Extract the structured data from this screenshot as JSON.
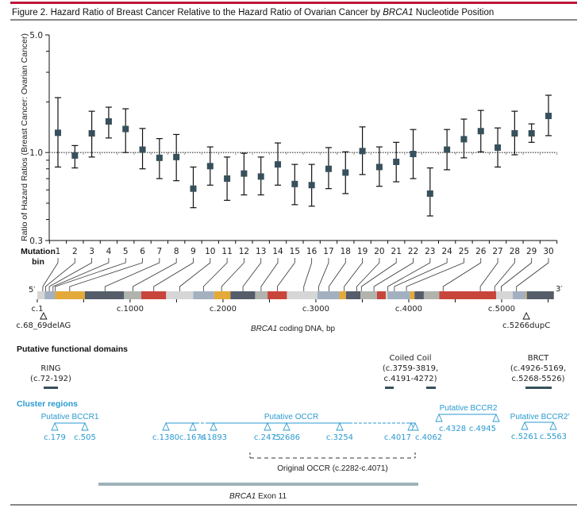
{
  "header": {
    "title_prefix": "Figure 2. Hazard Ratio of Breast Cancer Relative to the Hazard Ratio of Ovarian Cancer by ",
    "title_gene": "BRCA1",
    "title_suffix": " Nucleotide Position",
    "accent_color": "#c0163a"
  },
  "chart_data": {
    "type": "scatter",
    "subtype": "forest-plot-with-error-bars",
    "title": "Hazard Ratio of Breast Cancer Relative to the Hazard Ratio of Ovarian Cancer by BRCA1 Nucleotide Position",
    "ylabel": "Ratio of Hazard Ratios (Breast Cancer: Ovarian Cancer)",
    "xlabel": "Mutation bin",
    "yscale": "log",
    "ylim": [
      0.3,
      5.0
    ],
    "yticks": [
      0.3,
      1.0,
      5.0
    ],
    "ytick_labels": [
      "0.3",
      "1.0",
      "5.0"
    ],
    "reference_line": 1.0,
    "marker_color": "#37505c",
    "categories": [
      "1",
      "2",
      "3",
      "4",
      "5",
      "6",
      "7",
      "8",
      "9",
      "10",
      "11",
      "12",
      "13",
      "14",
      "15",
      "16",
      "17",
      "18",
      "19",
      "20",
      "21",
      "22",
      "23",
      "24",
      "25",
      "26",
      "27",
      "28",
      "29",
      "30"
    ],
    "series": [
      {
        "name": "Ratio of hazard ratios",
        "values": [
          1.31,
          0.96,
          1.3,
          1.53,
          1.38,
          1.04,
          0.93,
          0.94,
          0.61,
          0.83,
          0.7,
          0.75,
          0.72,
          0.85,
          0.65,
          0.64,
          0.8,
          0.76,
          1.02,
          0.82,
          0.88,
          0.98,
          0.57,
          1.04,
          1.2,
          1.34,
          1.07,
          1.3,
          1.3,
          1.65
        ],
        "lower": [
          0.82,
          0.81,
          0.94,
          1.22,
          1.0,
          0.8,
          0.7,
          0.68,
          0.47,
          0.64,
          0.52,
          0.56,
          0.56,
          0.64,
          0.49,
          0.48,
          0.61,
          0.57,
          0.74,
          0.63,
          0.67,
          0.7,
          0.42,
          0.79,
          0.93,
          1.01,
          0.82,
          0.97,
          1.15,
          1.26
        ],
        "upper": [
          2.12,
          1.1,
          1.76,
          1.86,
          1.82,
          1.39,
          1.21,
          1.28,
          0.82,
          1.08,
          0.94,
          0.99,
          0.94,
          1.14,
          0.85,
          0.85,
          1.07,
          1.01,
          1.42,
          1.08,
          1.15,
          1.37,
          0.81,
          1.37,
          1.58,
          1.78,
          1.4,
          1.76,
          1.48,
          2.19
        ]
      }
    ]
  },
  "mutation_axis": {
    "label_line1": "Mutation",
    "label_line2": "bin",
    "bin_gene_positions_bp": [
      60,
      90,
      130,
      170,
      195,
      350,
      730,
      1030,
      1255,
      1535,
      1790,
      1985,
      2215,
      2410,
      2585,
      2870,
      3030,
      3140,
      3305,
      3440,
      3490,
      3625,
      3775,
      3845,
      3975,
      4370,
      4770,
      4925,
      4995,
      5160
    ]
  },
  "gene_map": {
    "five_prime": "5′",
    "three_prime": "3′",
    "axis_label_gene": "BRCA1",
    "axis_label_rest": " coding DNA, bp",
    "length_bp": 5592,
    "tick_interval_bp": 500,
    "tick_labels": [
      {
        "bp": 1,
        "label": "c.1"
      },
      {
        "bp": 1000,
        "label": "c.1000"
      },
      {
        "bp": 2000,
        "label": "c.2000"
      },
      {
        "bp": 3000,
        "label": "c.3000"
      },
      {
        "bp": 4000,
        "label": "c.4000"
      },
      {
        "bp": 5000,
        "label": "c.5000"
      }
    ],
    "colors": {
      "light": "#d6d6d6",
      "blue": "#a3b0c0",
      "gold": "#e3a93a",
      "dark": "#555d6a",
      "gray": "#b0b3ae",
      "red": "#c8453c"
    },
    "segments": [
      {
        "start": 1,
        "end": 80,
        "color": "light"
      },
      {
        "start": 80,
        "end": 193,
        "color": "blue"
      },
      {
        "start": 193,
        "end": 513,
        "color": "gold"
      },
      {
        "start": 513,
        "end": 935,
        "color": "dark"
      },
      {
        "start": 935,
        "end": 1120,
        "color": "gray"
      },
      {
        "start": 1120,
        "end": 1388,
        "color": "red"
      },
      {
        "start": 1388,
        "end": 1679,
        "color": "light"
      },
      {
        "start": 1679,
        "end": 1904,
        "color": "blue"
      },
      {
        "start": 1904,
        "end": 2081,
        "color": "gold"
      },
      {
        "start": 2081,
        "end": 2346,
        "color": "dark"
      },
      {
        "start": 2346,
        "end": 2480,
        "color": "gray"
      },
      {
        "start": 2480,
        "end": 2688,
        "color": "red"
      },
      {
        "start": 2688,
        "end": 3017,
        "color": "light"
      },
      {
        "start": 3017,
        "end": 3253,
        "color": "blue"
      },
      {
        "start": 3253,
        "end": 3324,
        "color": "gold"
      },
      {
        "start": 3324,
        "end": 3481,
        "color": "dark"
      },
      {
        "start": 3481,
        "end": 3658,
        "color": "gray"
      },
      {
        "start": 3658,
        "end": 3752,
        "color": "red"
      },
      {
        "start": 3752,
        "end": 3772,
        "color": "light"
      },
      {
        "start": 3772,
        "end": 4014,
        "color": "blue"
      },
      {
        "start": 4014,
        "end": 4062,
        "color": "gold"
      },
      {
        "start": 4062,
        "end": 4162,
        "color": "dark"
      },
      {
        "start": 4162,
        "end": 4328,
        "color": "gray"
      },
      {
        "start": 4328,
        "end": 4940,
        "color": "red"
      },
      {
        "start": 4940,
        "end": 5120,
        "color": "light"
      },
      {
        "start": 5120,
        "end": 5262,
        "color": "blue"
      },
      {
        "start": 5262,
        "end": 5271,
        "color": "gold"
      },
      {
        "start": 5271,
        "end": 5562,
        "color": "dark"
      }
    ],
    "founder_mutations": [
      {
        "bp": 68,
        "label": "c.68_69delAG"
      },
      {
        "bp": 5266,
        "label": "c.5266dupC"
      }
    ]
  },
  "functional_domains": {
    "heading": "Putative functional domains",
    "bar_color": "#37505c",
    "items": [
      {
        "name": "RING",
        "range_label": "(c.72-192)",
        "ranges": [
          [
            72,
            192
          ]
        ]
      },
      {
        "name": "Coiled Coil",
        "range_label_1": "(c.3759-3819,",
        "range_label_2": "c.4191-4272)",
        "ranges": [
          [
            3759,
            3819
          ],
          [
            4191,
            4272
          ]
        ]
      },
      {
        "name": "BRCT",
        "range_label_1": "(c.4926-5169,",
        "range_label_2": "c.5268-5526)",
        "ranges": [
          [
            4926,
            5169
          ],
          [
            5268,
            5526
          ]
        ]
      }
    ]
  },
  "cluster_regions": {
    "heading": "Cluster regions",
    "color": "#2a9ad0",
    "regions": [
      {
        "name": "Putative BCCR1",
        "points": [
          {
            "bp": 179,
            "label": "c.179"
          },
          {
            "bp": 505,
            "label": "c.505"
          }
        ]
      },
      {
        "name": "Putative OCCR",
        "points": [
          {
            "bp": 1380,
            "label": "c.1380"
          },
          {
            "bp": 1674,
            "label": "c.1674"
          },
          {
            "bp": 1893,
            "label": "c.1893"
          },
          {
            "bp": 2475,
            "label": "c.2475"
          },
          {
            "bp": 2686,
            "label": "c.2686"
          },
          {
            "bp": 3254,
            "label": "c.3254"
          },
          {
            "bp": 4017,
            "label": "c.4017"
          },
          {
            "bp": 4062,
            "label": "c.4062"
          }
        ]
      },
      {
        "name": "Putative BCCR2",
        "points": [
          {
            "bp": 4328,
            "label": "c.4328"
          },
          {
            "bp": 4945,
            "label": "c.4945"
          }
        ]
      },
      {
        "name": "Putative BCCR2′",
        "points": [
          {
            "bp": 5261,
            "label": "c.5261"
          },
          {
            "bp": 5563,
            "label": "c.5563"
          }
        ]
      }
    ],
    "original_occr": {
      "label": "Original OCCR  (c.2282-c.4071)",
      "start": 2282,
      "end": 4071
    }
  },
  "exon": {
    "label_gene": "BRCA1",
    "label_rest": " Exon 11",
    "start": 670,
    "end": 4096,
    "color": "#9eb2b8"
  }
}
